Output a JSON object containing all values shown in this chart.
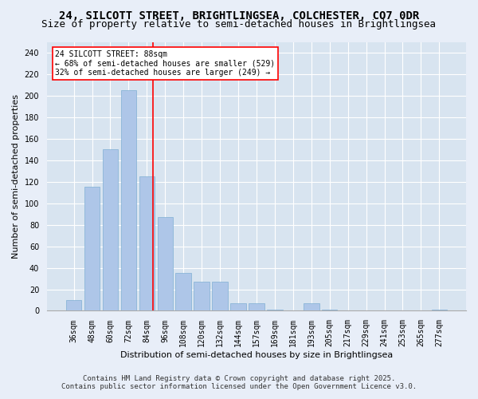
{
  "title_line1": "24, SILCOTT STREET, BRIGHTLINGSEA, COLCHESTER, CO7 0DR",
  "title_line2": "Size of property relative to semi-detached houses in Brightlingsea",
  "xlabel": "Distribution of semi-detached houses by size in Brightlingsea",
  "ylabel": "Number of semi-detached properties",
  "categories": [
    "36sqm",
    "48sqm",
    "60sqm",
    "72sqm",
    "84sqm",
    "96sqm",
    "108sqm",
    "120sqm",
    "132sqm",
    "144sqm",
    "157sqm",
    "169sqm",
    "181sqm",
    "193sqm",
    "205sqm",
    "217sqm",
    "229sqm",
    "241sqm",
    "253sqm",
    "265sqm",
    "277sqm"
  ],
  "values": [
    10,
    115,
    150,
    205,
    125,
    87,
    35,
    27,
    27,
    7,
    7,
    1,
    0,
    7,
    1,
    0,
    0,
    0,
    0,
    0,
    1
  ],
  "bar_color": "#aec6e8",
  "bar_edge_color": "#7fafd4",
  "marker_label_line1": "24 SILCOTT STREET: 88sqm",
  "marker_label_line2": "← 68% of semi-detached houses are smaller (529)",
  "marker_label_line3": "32% of semi-detached houses are larger (249) →",
  "marker_color": "red",
  "ylim": [
    0,
    250
  ],
  "yticks": [
    0,
    20,
    40,
    60,
    80,
    100,
    120,
    140,
    160,
    180,
    200,
    220,
    240
  ],
  "background_color": "#e8eef8",
  "plot_background_color": "#d8e4f0",
  "grid_color": "#ffffff",
  "footnote_line1": "Contains HM Land Registry data © Crown copyright and database right 2025.",
  "footnote_line2": "Contains public sector information licensed under the Open Government Licence v3.0.",
  "title_fontsize": 10,
  "subtitle_fontsize": 9,
  "axis_label_fontsize": 8,
  "tick_fontsize": 7,
  "annotation_fontsize": 7,
  "footnote_fontsize": 6.5
}
